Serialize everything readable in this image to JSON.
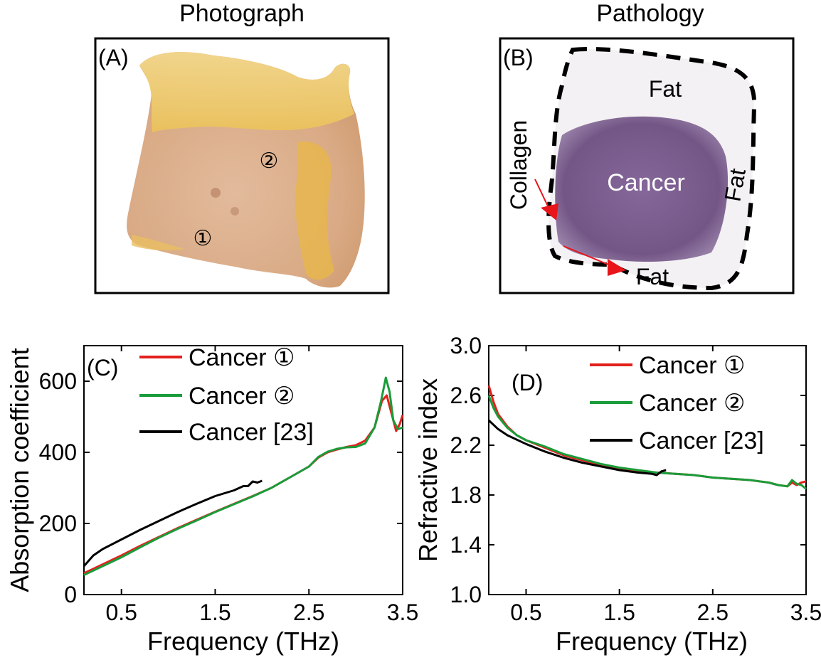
{
  "panels": {
    "a": {
      "header": "Photograph",
      "label": "(A)",
      "markers": [
        "①",
        "②"
      ]
    },
    "b": {
      "header": "Pathology",
      "label": "(B)",
      "annotations": {
        "fat_top": "Fat",
        "collagen": "Collagen",
        "cancer": "Cancer",
        "fat_right": "Fat",
        "fat_bottom": "Fat"
      }
    }
  },
  "colors": {
    "cancer1": "#e3211c",
    "cancer2": "#1a9c3a",
    "ref23": "#000000",
    "arrow": "#e8151b",
    "tissue_fat": "#f0d27a",
    "tissue_body": "#dcb08c",
    "stain": "#7a5b8e"
  },
  "chart_data": [
    {
      "type": "line",
      "panel_label": "(C)",
      "xlabel": "Frequency (THz)",
      "ylabel": "Absorption coefficient",
      "xlim": [
        0.1,
        3.5
      ],
      "ylim": [
        0,
        700
      ],
      "xticks": [
        0.5,
        1.5,
        2.5,
        3.5
      ],
      "xtick_labels": [
        "0.5",
        "1.5",
        "2.5",
        "3.5"
      ],
      "yticks": [
        0,
        200,
        400,
        600
      ],
      "ytick_labels": [
        "0",
        "200",
        "400",
        "600"
      ],
      "legend": [
        "Cancer ①",
        "Cancer ②",
        "Cancer [23]"
      ],
      "series": [
        {
          "name": "Cancer ①",
          "color_key": "cancer1",
          "x": [
            0.1,
            0.3,
            0.5,
            0.7,
            0.9,
            1.1,
            1.3,
            1.5,
            1.7,
            1.9,
            2.1,
            2.3,
            2.5,
            2.6,
            2.7,
            2.8,
            2.9,
            3.0,
            3.1,
            3.2,
            3.28,
            3.33,
            3.38,
            3.43,
            3.47,
            3.5
          ],
          "y": [
            60,
            85,
            110,
            137,
            162,
            187,
            210,
            233,
            255,
            277,
            300,
            330,
            360,
            385,
            400,
            408,
            415,
            420,
            433,
            470,
            545,
            560,
            510,
            460,
            480,
            505
          ]
        },
        {
          "name": "Cancer ②",
          "color_key": "cancer2",
          "x": [
            0.1,
            0.3,
            0.5,
            0.7,
            0.9,
            1.1,
            1.3,
            1.5,
            1.7,
            1.9,
            2.1,
            2.3,
            2.5,
            2.6,
            2.7,
            2.8,
            2.9,
            3.0,
            3.1,
            3.2,
            3.27,
            3.32,
            3.36,
            3.4,
            3.45,
            3.5
          ],
          "y": [
            55,
            80,
            105,
            133,
            160,
            185,
            208,
            232,
            254,
            276,
            300,
            330,
            360,
            387,
            402,
            410,
            414,
            415,
            425,
            470,
            545,
            610,
            570,
            490,
            465,
            470
          ]
        },
        {
          "name": "Cancer [23]",
          "color_key": "ref23",
          "x": [
            0.1,
            0.2,
            0.3,
            0.5,
            0.7,
            0.9,
            1.1,
            1.3,
            1.5,
            1.6,
            1.7,
            1.8,
            1.85,
            1.9,
            1.95,
            2.0
          ],
          "y": [
            80,
            110,
            128,
            155,
            182,
            207,
            232,
            255,
            277,
            285,
            293,
            305,
            305,
            318,
            315,
            320
          ]
        }
      ]
    },
    {
      "type": "line",
      "panel_label": "(D)",
      "xlabel": "Frequency (THz)",
      "ylabel": "Refractive index",
      "xlim": [
        0.1,
        3.5
      ],
      "ylim": [
        1.0,
        3.0
      ],
      "xticks": [
        0.5,
        1.5,
        2.5,
        3.5
      ],
      "xtick_labels": [
        "0.5",
        "1.5",
        "2.5",
        "3.5"
      ],
      "yticks": [
        1.0,
        1.4,
        1.8,
        2.2,
        2.6,
        3.0
      ],
      "ytick_labels": [
        "1.0",
        "1.4",
        "1.8",
        "2.2",
        "2.6",
        "3.0"
      ],
      "legend": [
        "Cancer ①",
        "Cancer ②",
        "Cancer [23]"
      ],
      "series": [
        {
          "name": "Cancer ①",
          "color_key": "cancer1",
          "x": [
            0.1,
            0.15,
            0.2,
            0.3,
            0.4,
            0.5,
            0.7,
            0.9,
            1.1,
            1.3,
            1.5,
            1.7,
            1.9,
            2.1,
            2.3,
            2.5,
            2.7,
            2.9,
            3.0,
            3.1,
            3.2,
            3.3,
            3.35,
            3.4,
            3.45,
            3.5
          ],
          "y": [
            2.68,
            2.55,
            2.45,
            2.35,
            2.28,
            2.24,
            2.18,
            2.12,
            2.08,
            2.04,
            2.01,
            1.99,
            1.98,
            1.97,
            1.96,
            1.94,
            1.93,
            1.92,
            1.91,
            1.9,
            1.88,
            1.87,
            1.9,
            1.88,
            1.9,
            1.91
          ]
        },
        {
          "name": "Cancer ②",
          "color_key": "cancer2",
          "x": [
            0.1,
            0.15,
            0.2,
            0.3,
            0.4,
            0.5,
            0.7,
            0.9,
            1.1,
            1.3,
            1.5,
            1.7,
            1.9,
            2.1,
            2.3,
            2.5,
            2.7,
            2.9,
            3.0,
            3.1,
            3.2,
            3.3,
            3.35,
            3.4,
            3.45,
            3.5
          ],
          "y": [
            2.6,
            2.5,
            2.43,
            2.34,
            2.28,
            2.24,
            2.19,
            2.13,
            2.09,
            2.05,
            2.02,
            2.0,
            1.98,
            1.97,
            1.96,
            1.94,
            1.93,
            1.92,
            1.91,
            1.9,
            1.88,
            1.87,
            1.92,
            1.89,
            1.88,
            1.85
          ]
        },
        {
          "name": "Cancer [23]",
          "color_key": "ref23",
          "x": [
            0.1,
            0.2,
            0.3,
            0.5,
            0.7,
            0.9,
            1.1,
            1.3,
            1.5,
            1.7,
            1.85,
            1.9,
            1.95,
            2.0
          ],
          "y": [
            2.4,
            2.33,
            2.28,
            2.21,
            2.15,
            2.1,
            2.06,
            2.03,
            2.0,
            1.98,
            1.97,
            1.96,
            1.99,
            2.0
          ]
        }
      ]
    }
  ]
}
